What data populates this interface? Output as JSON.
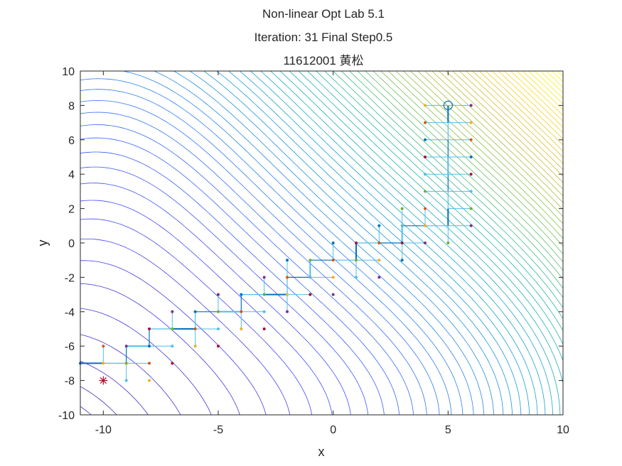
{
  "chart_data": {
    "type": "line",
    "title_lines": [
      "Non-linear Opt Lab 5.1",
      "Iteration: 31   Final Step0.5",
      "11612001 黄松"
    ],
    "xlabel": "x",
    "ylabel": "y",
    "xlim": [
      -11,
      10
    ],
    "ylim": [
      -10,
      10
    ],
    "xticks": [
      -10,
      -5,
      0,
      5,
      10
    ],
    "yticks": [
      -10,
      -8,
      -6,
      -4,
      -2,
      0,
      2,
      4,
      6,
      8,
      10
    ],
    "xtick_labels": [
      "-10",
      "-5",
      "0",
      "5",
      "10"
    ],
    "ytick_labels": [
      "-10",
      "-8",
      "-6",
      "-4",
      "-2",
      "0",
      "2",
      "4",
      "6",
      "8",
      "10"
    ],
    "grid": false,
    "start_point": {
      "x": -10,
      "y": -8,
      "marker": "asterisk",
      "color": "#a2142f"
    },
    "optimum_point": {
      "x": 5,
      "y": 8,
      "marker": "circle",
      "color": "#0072bd"
    },
    "path": [
      [
        -11,
        -7
      ],
      [
        -10,
        -7
      ],
      [
        -9,
        -7
      ],
      [
        -9,
        -6
      ],
      [
        -8,
        -6
      ],
      [
        -8,
        -5
      ],
      [
        -7,
        -5
      ],
      [
        -6,
        -5
      ],
      [
        -6,
        -4
      ],
      [
        -5,
        -4
      ],
      [
        -4,
        -4
      ],
      [
        -4,
        -3
      ],
      [
        -3,
        -3
      ],
      [
        -2,
        -3
      ],
      [
        -2,
        -2
      ],
      [
        -1,
        -2
      ],
      [
        -1,
        -1
      ],
      [
        0,
        -1
      ],
      [
        1,
        -1
      ],
      [
        1,
        0
      ],
      [
        2,
        0
      ],
      [
        3,
        0
      ],
      [
        3,
        1
      ],
      [
        4,
        1
      ],
      [
        5,
        1
      ],
      [
        5,
        2
      ],
      [
        5,
        3
      ],
      [
        5,
        4
      ],
      [
        5,
        5
      ],
      [
        5,
        6
      ],
      [
        5,
        7
      ],
      [
        5,
        8
      ]
    ],
    "probe_points": [
      [
        -11,
        -7
      ],
      [
        -10,
        -6
      ],
      [
        -10,
        -7
      ],
      [
        -9,
        -6
      ],
      [
        -9,
        -7
      ],
      [
        -9,
        -8
      ],
      [
        -8,
        -5
      ],
      [
        -8,
        -6
      ],
      [
        -8,
        -7
      ],
      [
        -8,
        -8
      ],
      [
        -7,
        -4
      ],
      [
        -7,
        -5
      ],
      [
        -7,
        -6
      ],
      [
        -7,
        -7
      ],
      [
        -6,
        -4
      ],
      [
        -6,
        -5
      ],
      [
        -6,
        -6
      ],
      [
        -5,
        -3
      ],
      [
        -5,
        -4
      ],
      [
        -5,
        -5
      ],
      [
        -5,
        -6
      ],
      [
        -4,
        -3
      ],
      [
        -4,
        -4
      ],
      [
        -4,
        -5
      ],
      [
        -3,
        -2
      ],
      [
        -3,
        -3
      ],
      [
        -3,
        -4
      ],
      [
        -3,
        -5
      ],
      [
        -2,
        -1
      ],
      [
        -2,
        -2
      ],
      [
        -2,
        -3
      ],
      [
        -2,
        -4
      ],
      [
        -1,
        -1
      ],
      [
        -1,
        -2
      ],
      [
        -1,
        -3
      ],
      [
        0,
        0
      ],
      [
        0,
        -1
      ],
      [
        0,
        -2
      ],
      [
        0,
        -3
      ],
      [
        1,
        -1
      ],
      [
        1,
        -2
      ],
      [
        1,
        0
      ],
      [
        2,
        1
      ],
      [
        2,
        0
      ],
      [
        2,
        -1
      ],
      [
        2,
        -2
      ],
      [
        3,
        2
      ],
      [
        3,
        1
      ],
      [
        3,
        0
      ],
      [
        3,
        -1
      ],
      [
        4,
        2
      ],
      [
        4,
        1
      ],
      [
        4,
        0
      ],
      [
        4,
        3
      ],
      [
        4,
        4
      ],
      [
        4,
        5
      ],
      [
        4,
        6
      ],
      [
        4,
        7
      ],
      [
        4,
        8
      ],
      [
        6,
        1
      ],
      [
        6,
        2
      ],
      [
        6,
        3
      ],
      [
        6,
        4
      ],
      [
        6,
        5
      ],
      [
        6,
        6
      ],
      [
        6,
        7
      ],
      [
        6,
        8
      ],
      [
        5,
        0
      ]
    ],
    "probe_colors": [
      "#0072bd",
      "#d95319",
      "#edb120",
      "#7e2f8e",
      "#77ac30",
      "#4dbeee",
      "#a2142f"
    ],
    "path_colors": [
      "#0072bd",
      "#4dbeee"
    ],
    "contour_colormap": [
      "#3e26a8",
      "#4743f8",
      "#2c7bf3",
      "#13a0d4",
      "#23b8a4",
      "#7ec24d",
      "#cfb92f",
      "#fad520",
      "#f9fb0e"
    ]
  }
}
